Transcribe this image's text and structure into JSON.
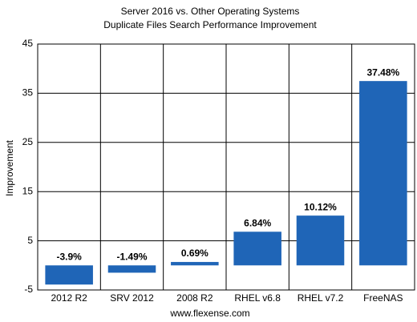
{
  "chart_data": {
    "type": "bar",
    "title": "Server 2016 vs. Other Operating Systems",
    "subtitle": "Duplicate Files Search Performance Improvement",
    "y_label": "Improvement",
    "x_label": "www.flexense.com",
    "categories": [
      "2012 R2",
      "SRV 2012",
      "2008 R2",
      "RHEL v6.8",
      "RHEL v7.2",
      "FreeNAS"
    ],
    "values": [
      -3.9,
      -1.49,
      0.69,
      6.84,
      10.12,
      37.48
    ],
    "value_labels": [
      "-3.9%",
      "-1.49%",
      "0.69%",
      "6.84%",
      "10.12%",
      "37.48%"
    ],
    "color": "#1f65b7",
    "ylim": [
      -5,
      45
    ],
    "yticks": [
      -5,
      5,
      15,
      25,
      35,
      45
    ],
    "grid": true
  }
}
